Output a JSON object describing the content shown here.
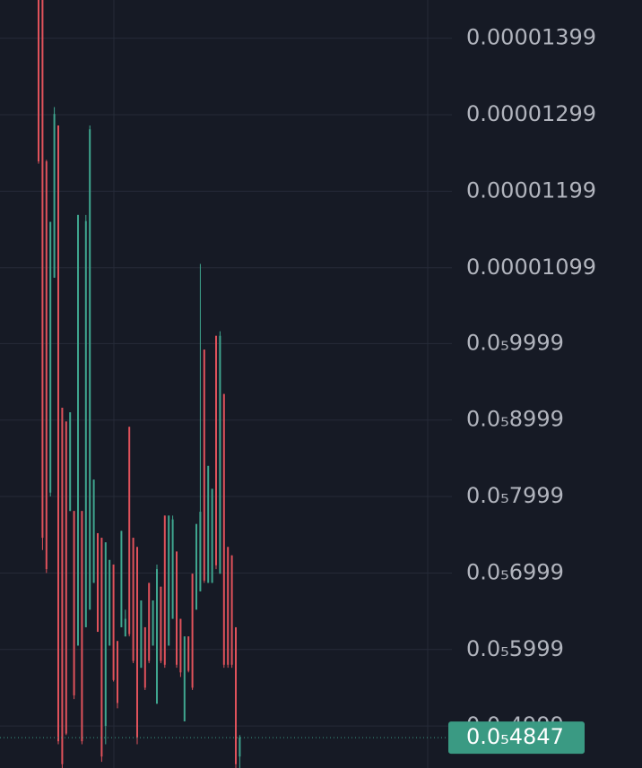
{
  "chart_data": {
    "type": "candlestick",
    "up_color": "#3fa68f",
    "down_color": "#e0525b",
    "categories": [
      null,
      null,
      null,
      null,
      null,
      null,
      null,
      null,
      null,
      null,
      null,
      null,
      null,
      null,
      null,
      null,
      null,
      null,
      null,
      null,
      null,
      null,
      null,
      null,
      null,
      null,
      null,
      null,
      null,
      null,
      null,
      null,
      null,
      null,
      null,
      null,
      null,
      null,
      null,
      null,
      null,
      null,
      null,
      null,
      null,
      null,
      null,
      null,
      null,
      null,
      null,
      null
    ],
    "open": [
      1.449e-05,
      1.449e-05,
      1.238e-05,
      8.05e-06,
      1.086e-05,
      1.285e-05,
      9.16e-06,
      8.98e-06,
      7.81e-06,
      7.81e-06,
      6.05e-06,
      7.81e-06,
      6.29e-06,
      6.52e-06,
      6.87e-06,
      7.52e-06,
      7.46e-06,
      5e-06,
      6.05e-06,
      7.11e-06,
      6.11e-06,
      6.29e-06,
      6.17e-06,
      8.91e-06,
      7.46e-06,
      7.34e-06,
      5.76e-06,
      6.29e-06,
      6.87e-06,
      6.05e-06,
      5.29e-06,
      6.82e-06,
      7.75e-06,
      6.05e-06,
      6.4e-06,
      7.28e-06,
      6.4e-06,
      5.06e-06,
      6.17e-06,
      6.99e-06,
      6.52e-06,
      6.76e-06,
      9.92e-06,
      6.87e-06,
      6.87e-06,
      1.01e-05,
      6.99e-06,
      9.34e-06,
      7.34e-06,
      7.23e-06,
      6.29e-06,
      4.6e-06
    ],
    "high": [
      1.449e-05,
      1.449e-05,
      1.24e-05,
      1.159e-05,
      1.309e-05,
      1.285e-05,
      9.16e-06,
      8.98e-06,
      9.1e-06,
      7.81e-06,
      1.168e-05,
      7.81e-06,
      1.168e-05,
      1.285e-05,
      8.22e-06,
      7.52e-06,
      7.46e-06,
      7.4e-06,
      7.17e-06,
      7.11e-06,
      6.11e-06,
      7.55e-06,
      6.52e-06,
      8.91e-06,
      7.46e-06,
      7.34e-06,
      6.64e-06,
      6.29e-06,
      6.87e-06,
      6.64e-06,
      7.11e-06,
      6.82e-06,
      7.75e-06,
      7.75e-06,
      7.75e-06,
      7.28e-06,
      6.4e-06,
      6.17e-06,
      6.17e-06,
      6.99e-06,
      7.64e-06,
      1.104e-05,
      9.92e-06,
      8.4e-06,
      8.1e-06,
      1.01e-05,
      1.016e-05,
      9.34e-06,
      7.34e-06,
      7.23e-06,
      6.29e-06,
      4.88e-06
    ],
    "low": [
      1.235e-05,
      7.3e-06,
      7e-06,
      8e-06,
      1.086e-05,
      4.76e-06,
      4.45e-06,
      4.88e-06,
      7.81e-06,
      5.35e-06,
      6.05e-06,
      4.76e-06,
      6.29e-06,
      6.52e-06,
      6.87e-06,
      6.23e-06,
      4.53e-06,
      4.76e-06,
      6.05e-06,
      5.58e-06,
      5.23e-06,
      6.29e-06,
      6.17e-06,
      6.17e-06,
      5.82e-06,
      4.76e-06,
      5.76e-06,
      5.47e-06,
      5.82e-06,
      6.05e-06,
      5.29e-06,
      5.82e-06,
      5.76e-06,
      6.05e-06,
      6.4e-06,
      5.76e-06,
      5.64e-06,
      5.06e-06,
      5.7e-06,
      5.47e-06,
      6.52e-06,
      6.76e-06,
      6.87e-06,
      6.87e-06,
      6.87e-06,
      7.05e-06,
      6.99e-06,
      5.76e-06,
      5.76e-06,
      5.76e-06,
      4.45e-06,
      4.45e-06
    ],
    "close": [
      1.238e-05,
      7.46e-06,
      7.05e-06,
      1.159e-05,
      1.3e-05,
      4.8e-06,
      4.5e-06,
      4.9e-06,
      9.1e-06,
      5.4e-06,
      1.168e-05,
      4.8e-06,
      1.16e-05,
      1.28e-05,
      8.22e-06,
      6.23e-06,
      4.6e-06,
      7.4e-06,
      7.17e-06,
      5.6e-06,
      5.3e-06,
      7.55e-06,
      6.4e-06,
      6.2e-06,
      5.85e-06,
      4.85e-06,
      6.64e-06,
      5.5e-06,
      5.85e-06,
      6.64e-06,
      7.05e-06,
      5.85e-06,
      5.8e-06,
      7.75e-06,
      7.7e-06,
      5.8e-06,
      5.7e-06,
      6.17e-06,
      5.72e-06,
      5.5e-06,
      7.64e-06,
      7.8e-06,
      6.9e-06,
      8.4e-06,
      8.1e-06,
      7.1e-06,
      1.01e-05,
      5.8e-06,
      5.8e-06,
      5.8e-06,
      4.5e-06,
      4.85e-06
    ],
    "ylim": [
      4.45e-06,
      1.449e-05
    ],
    "yticks": [
      {
        "value": 1.399e-05,
        "label": "0.00001399"
      },
      {
        "value": 1.299e-05,
        "label": "0.00001299"
      },
      {
        "value": 1.199e-05,
        "label": "0.00001199"
      },
      {
        "value": 1.099e-05,
        "label": "0.00001099"
      },
      {
        "value": 9.999e-06,
        "label": "0.0₅9999"
      },
      {
        "value": 8.999e-06,
        "label": "0.0₅8999"
      },
      {
        "value": 7.999e-06,
        "label": "0.0₅7999"
      },
      {
        "value": 6.999e-06,
        "label": "0.0₅6999"
      },
      {
        "value": 5.999e-06,
        "label": "0.0₅5999"
      },
      {
        "value": 4.999e-06,
        "label": "0.0₅4999"
      }
    ],
    "grid": true,
    "last_price": {
      "value": 4.847e-06,
      "label": "0.0₅4847"
    },
    "last_price_color": "#3a9a83"
  }
}
